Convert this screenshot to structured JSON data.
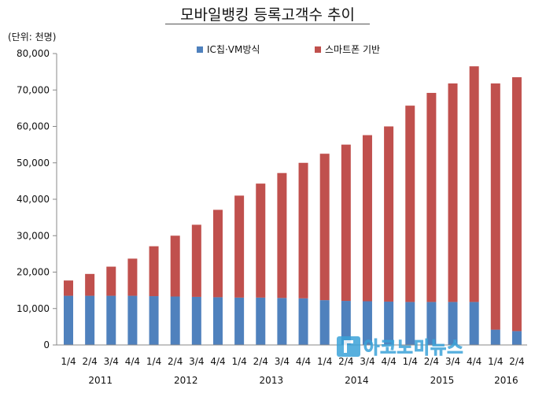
{
  "chart_data": {
    "type": "bar",
    "stacked": true,
    "title": "모바일뱅킹 등록고객수 추이",
    "unit_label": "(단위: 천명)",
    "ylim": [
      0,
      80000
    ],
    "yticks": [
      "0",
      "10,000",
      "20,000",
      "30,000",
      "40,000",
      "50,000",
      "60,000",
      "70,000",
      "80,000"
    ],
    "ytick_values": [
      0,
      10000,
      20000,
      30000,
      40000,
      50000,
      60000,
      70000,
      80000
    ],
    "grid": false,
    "legend_position": "top",
    "categories": [
      "1/4",
      "2/4",
      "3/4",
      "4/4",
      "1/4",
      "2/4",
      "3/4",
      "4/4",
      "1/4",
      "2/4",
      "3/4",
      "4/4",
      "1/4",
      "2/4",
      "3/4",
      "4/4",
      "1/4",
      "2/4",
      "3/4",
      "4/4",
      "1/4",
      "2/4"
    ],
    "year_groups": [
      {
        "label": "2011",
        "start": 0,
        "end": 3
      },
      {
        "label": "2012",
        "start": 4,
        "end": 7
      },
      {
        "label": "2013",
        "start": 8,
        "end": 11
      },
      {
        "label": "2014",
        "start": 12,
        "end": 15
      },
      {
        "label": "2015",
        "start": 16,
        "end": 19
      },
      {
        "label": "2016",
        "start": 20,
        "end": 21
      }
    ],
    "series": [
      {
        "name": "IC칩·VM방식",
        "color": "#4f81bd",
        "values": [
          13500,
          13500,
          13500,
          13500,
          13400,
          13300,
          13200,
          13100,
          13000,
          13000,
          12900,
          12800,
          12300,
          12100,
          12000,
          11900,
          11800,
          11800,
          11800,
          11800,
          4200,
          3800
        ]
      },
      {
        "name": "스마트폰 기반",
        "color": "#c0504d",
        "values": [
          4200,
          6000,
          8000,
          10200,
          13700,
          16700,
          19800,
          24000,
          28000,
          31300,
          34300,
          37200,
          40200,
          42900,
          45600,
          48100,
          53900,
          57400,
          60000,
          64700,
          67600,
          69700
        ]
      }
    ]
  },
  "watermark": {
    "text": "아코노미뉴스"
  }
}
